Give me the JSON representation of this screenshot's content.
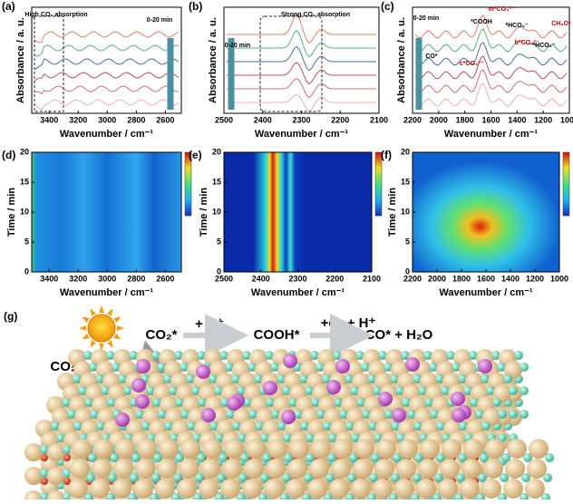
{
  "spectra": [
    {
      "label": "(a)",
      "ylabel": "Absorbance / a. u.",
      "xlabel": "Wavenumber / cm⁻¹",
      "xlim": [
        3520,
        2490
      ],
      "xticks": [
        3400,
        3200,
        3000,
        2800,
        2600
      ],
      "annotations": [
        "High CO₂ absorption",
        "0-20 min"
      ]
    },
    {
      "label": "(b)",
      "ylabel": "Absorbance / a. u.",
      "xlabel": "Wavenumber / cm⁻¹",
      "xlim": [
        2500,
        2100
      ],
      "xticks": [
        2500,
        2400,
        2300,
        2200,
        2100
      ],
      "annotations": [
        "Strong CO₂ absorption",
        "0-20 min"
      ]
    },
    {
      "label": "(c)",
      "ylabel": "Absorbance / a. u.",
      "xlabel": "Wavenumber / cm⁻¹",
      "xlim": [
        2200,
        1000
      ],
      "xticks": [
        2200,
        2000,
        1800,
        1600,
        1400,
        1200,
        1000
      ],
      "annotations": [
        "0-20 min",
        "CO*",
        "c*CO₃²⁻",
        "*COOH",
        "m*CO₃²⁻",
        "*HCO₃⁻",
        "b*CO₃²⁻",
        "*HCO₂⁻",
        "CH₃O*"
      ]
    }
  ],
  "heatmaps": [
    {
      "label": "(d)",
      "ylabel": "Time / min",
      "xlabel": "Wavenumber / cm⁻¹",
      "xlim": [
        3520,
        2490
      ],
      "xticks": [
        3400,
        3200,
        3000,
        2800,
        2600
      ],
      "ylim": [
        0,
        20
      ],
      "yticks": [
        0,
        5,
        10,
        15,
        20
      ]
    },
    {
      "label": "(e)",
      "ylabel": "Time / min",
      "xlabel": "Wavenumber / cm⁻¹",
      "xlim": [
        2500,
        2100
      ],
      "xticks": [
        2500,
        2400,
        2300,
        2200,
        2100
      ],
      "ylim": [
        0,
        20
      ],
      "yticks": [
        0,
        5,
        10,
        15,
        20
      ]
    },
    {
      "label": "(f)",
      "ylabel": "Time / min",
      "xlabel": "Wavenumber / cm⁻¹",
      "xlim": [
        2200,
        1000
      ],
      "xticks": [
        2200,
        2000,
        1800,
        1600,
        1400,
        1200,
        1000
      ],
      "ylim": [
        0,
        20
      ],
      "yticks": [
        0,
        5,
        10,
        15,
        20
      ]
    }
  ],
  "scheme": {
    "label": "(g)",
    "reactant": "CO₂",
    "steps": [
      "CO₂*",
      "+ H⁺",
      "COOH*",
      "+e⁻ + H⁺",
      "CO* + H₂O"
    ]
  }
}
